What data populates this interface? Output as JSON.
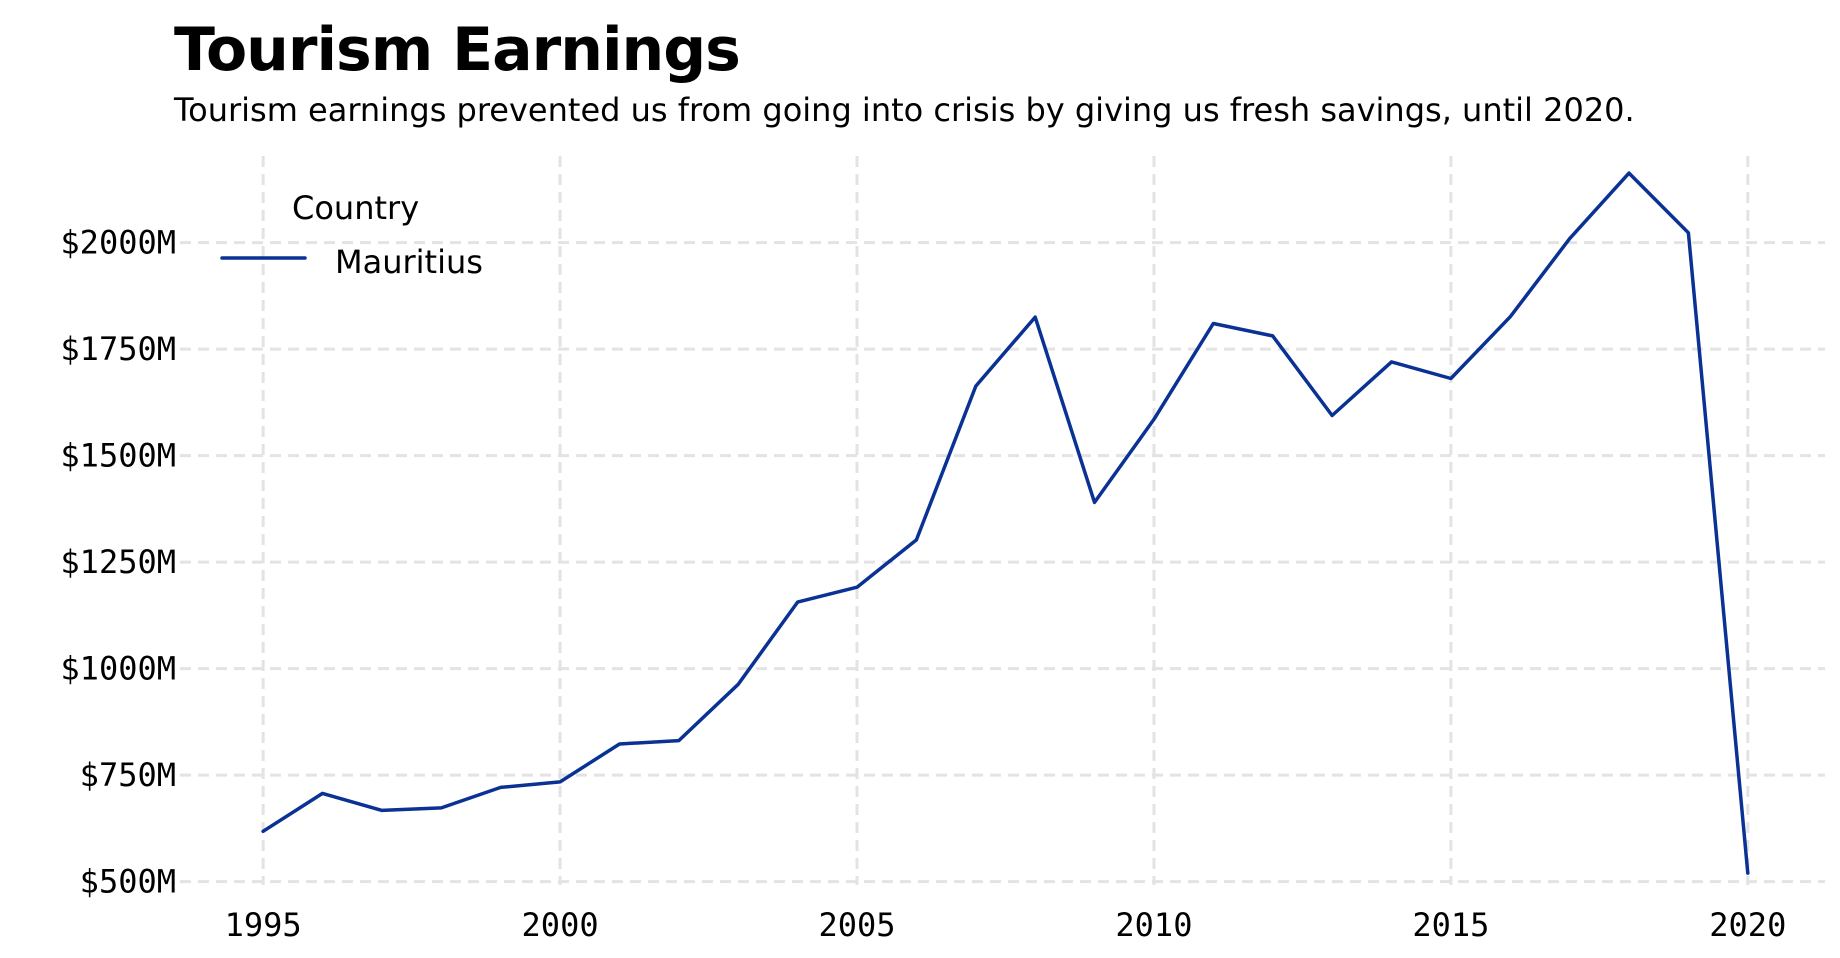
{
  "chart_data": {
    "type": "line",
    "title": "Tourism Earnings",
    "subtitle": "Tourism earnings prevented us from going into crisis by giving us fresh savings, until 2020.",
    "xlabel": "",
    "ylabel": "",
    "x": [
      1995,
      1996,
      1997,
      1998,
      1999,
      2000,
      2001,
      2002,
      2003,
      2004,
      2005,
      2006,
      2007,
      2008,
      2009,
      2010,
      2011,
      2012,
      2013,
      2014,
      2015,
      2016,
      2017,
      2018,
      2019,
      2020
    ],
    "series": [
      {
        "name": "Mauritius",
        "color": "#0a3294",
        "values": [
          618,
          707,
          667,
          673,
          721,
          734,
          823,
          831,
          963,
          1156,
          1191,
          1302,
          1663,
          1825,
          1390,
          1585,
          1810,
          1781,
          1594,
          1720,
          1681,
          1826,
          2009,
          2163,
          2023,
          520
        ]
      }
    ],
    "xlim": [
      1993.6,
      2021.3
    ],
    "ylim": [
      492,
      2222
    ],
    "x_ticks": [
      1995,
      2000,
      2005,
      2010,
      2015,
      2020
    ],
    "x_tick_labels": [
      "1995",
      "2000",
      "2005",
      "2010",
      "2015",
      "2020"
    ],
    "y_ticks": [
      500,
      750,
      1000,
      1250,
      1500,
      1750,
      2000
    ],
    "y_tick_labels": [
      "$500M",
      "$750M",
      "$1000M",
      "$1250M",
      "$1500M",
      "$1750M",
      "$2000M"
    ],
    "grid": true,
    "grid_style": "dashed",
    "legend": {
      "title": "Country",
      "placement": "top-left"
    }
  }
}
